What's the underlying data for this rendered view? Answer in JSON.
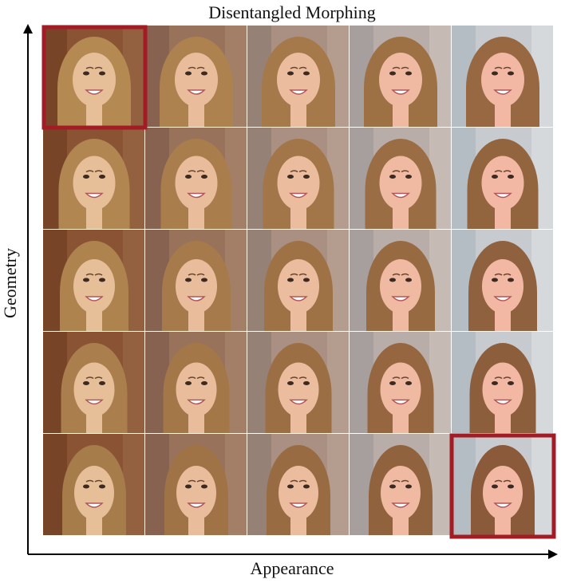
{
  "title": "Disentangled Morphing",
  "y_axis_label": "Geometry",
  "x_axis_label": "Appearance"
}
